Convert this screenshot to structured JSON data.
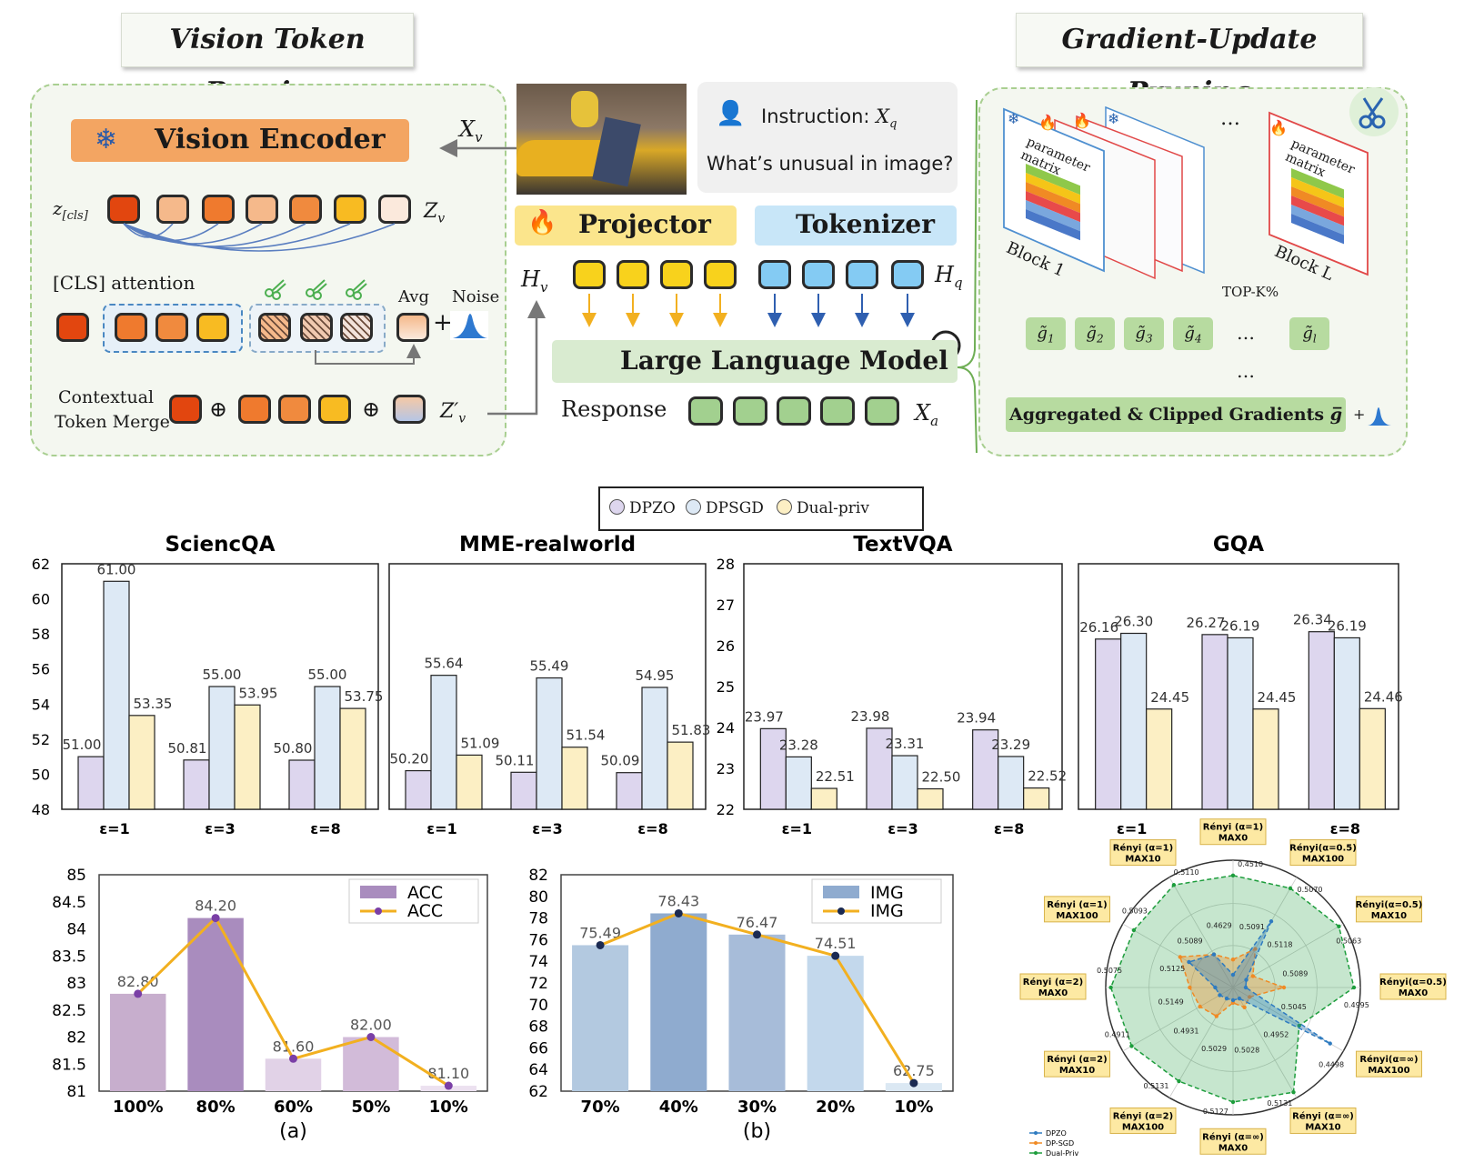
{
  "tags": {
    "vision": "Vision Token Pruning",
    "gradient": "Gradient-Update Pruning"
  },
  "vision_panel": {
    "encoder": "Vision Encoder",
    "x_v": "X",
    "x_v_sub": "v",
    "z_cls": "z",
    "z_cls_sub": "[cls]",
    "z_v": "Z",
    "z_v_sub": "v",
    "cls_attention": "[CLS]  attention",
    "avg": "Avg",
    "noise": "Noise",
    "plus": "+",
    "merge_label_1": "Contextual",
    "merge_label_2": "Token Merge",
    "oplus": "⊕",
    "z_v_prime": "Z′",
    "z_v_prime_sub": "v",
    "token_colors": [
      "#e2460f",
      "#f5b98b",
      "#ef7a2e",
      "#f5b98b",
      "#f08a3e",
      "#f8bb22",
      "#fbe9dc"
    ]
  },
  "center": {
    "instruction": "Instruction:",
    "x_q": "X",
    "x_q_sub": "q",
    "question": "What’s unusual in image?",
    "projector": "Projector",
    "tokenizer": "Tokenizer",
    "h_v": "H",
    "h_v_sub": "v",
    "h_q": "H",
    "h_q_sub": "q",
    "llm": "Large Language Model",
    "response": "Response",
    "x_a": "X",
    "x_a_sub": "a"
  },
  "gradient_panel": {
    "param_matrix": "parameter matrix",
    "block1": "Block 1",
    "blockL": "Block L",
    "ellipsis": "…",
    "topk": "TOP-K%",
    "grads": [
      [
        "g̃",
        "1"
      ],
      [
        "g̃",
        "2"
      ],
      [
        "g̃",
        "3"
      ],
      [
        "g̃",
        "4"
      ],
      [
        "g̃",
        "l"
      ]
    ],
    "aggregated": "Aggregated & Clipped Gradients ",
    "gbar": "g̅",
    "plus": "+"
  },
  "legend": {
    "items": [
      "DPZO",
      "DPSGD",
      "Dual-priv"
    ],
    "colors": [
      "#ddd6ee",
      "#dde9f5",
      "#fcefc4"
    ]
  },
  "chart_data": [
    {
      "type": "bar",
      "title": "SciencQA",
      "categories": [
        "ε=1",
        "ε=3",
        "ε=8"
      ],
      "ylim": [
        48,
        62
      ],
      "yticks": [
        "48",
        "50",
        "52",
        "54",
        "56",
        "58",
        "60",
        "62"
      ],
      "series": [
        {
          "name": "DPZO",
          "values": [
            51.0,
            50.81,
            50.8
          ]
        },
        {
          "name": "DPSGD",
          "values": [
            61.0,
            55.0,
            55.0
          ]
        },
        {
          "name": "Dual-priv",
          "values": [
            53.35,
            53.95,
            53.75
          ]
        }
      ],
      "labels": [
        [
          "51.00",
          "61.00",
          "53.35"
        ],
        [
          "50.81",
          "55.00",
          "53.95"
        ],
        [
          "50.80",
          "55.00",
          "53.75"
        ]
      ]
    },
    {
      "type": "bar",
      "title": "MME-realworld",
      "categories": [
        "ε=1",
        "ε=3",
        "ε=8"
      ],
      "ylim": [
        48,
        62
      ],
      "series": [
        {
          "name": "DPZO",
          "values": [
            50.2,
            50.11,
            50.09
          ]
        },
        {
          "name": "DPSGD",
          "values": [
            55.64,
            55.49,
            54.95
          ]
        },
        {
          "name": "Dual-priv",
          "values": [
            51.09,
            51.54,
            51.83
          ]
        }
      ],
      "labels": [
        [
          "50.20",
          "55.64",
          "51.09"
        ],
        [
          "50.11",
          "55.49",
          "51.54"
        ],
        [
          "50.09",
          "54.95",
          "51.83"
        ]
      ]
    },
    {
      "type": "bar",
      "title": "TextVQA",
      "categories": [
        "ε=1",
        "ε=3",
        "ε=8"
      ],
      "ylim": [
        22,
        28
      ],
      "yticks": [
        "22",
        "23",
        "24",
        "25",
        "26",
        "27",
        "28"
      ],
      "series": [
        {
          "name": "DPZO",
          "values": [
            23.97,
            23.98,
            23.94
          ]
        },
        {
          "name": "DPSGD",
          "values": [
            23.28,
            23.31,
            23.29
          ]
        },
        {
          "name": "Dual-priv",
          "values": [
            22.51,
            22.5,
            22.52
          ]
        }
      ],
      "labels": [
        [
          "23.97",
          "23.28",
          "22.51"
        ],
        [
          "23.98",
          "23.31",
          "22.50"
        ],
        [
          "23.94",
          "23.29",
          "22.52"
        ]
      ]
    },
    {
      "type": "bar",
      "title": "GQA",
      "categories": [
        "ε=1",
        "ε=3",
        "ε=8"
      ],
      "ylim": [
        22,
        28
      ],
      "series": [
        {
          "name": "DPZO",
          "values": [
            26.16,
            26.27,
            26.34
          ]
        },
        {
          "name": "DPSGD",
          "values": [
            26.3,
            26.19,
            26.19
          ]
        },
        {
          "name": "Dual-priv",
          "values": [
            24.45,
            24.45,
            24.46
          ]
        }
      ],
      "labels": [
        [
          "26.16",
          "26.30",
          "24.45"
        ],
        [
          "26.27",
          "26.19",
          "24.45"
        ],
        [
          "26.34",
          "26.19",
          "24.46"
        ]
      ]
    },
    {
      "type": "bar",
      "subtitle": "(a)",
      "categories": [
        "100%",
        "80%",
        "60%",
        "50%",
        "10%"
      ],
      "ylim": [
        81,
        85
      ],
      "yticks": [
        "81",
        "81.5",
        "82",
        "82.5",
        "83",
        "83.5",
        "84",
        "84.5",
        "85"
      ],
      "series": [
        {
          "name": "ACC",
          "values": [
            82.8,
            84.2,
            81.6,
            82.0,
            81.1
          ]
        }
      ],
      "labels": [
        "82.80",
        "84.20",
        "81.60",
        "82.00",
        "81.10"
      ],
      "legend": [
        "ACC",
        "ACC"
      ],
      "bar_colors": [
        "#c7aecd",
        "#a98cbe",
        "#e1d2e7",
        "#d2bbd9",
        "#ece1f0"
      ]
    },
    {
      "type": "bar",
      "subtitle": "(b)",
      "categories": [
        "70%",
        "40%",
        "30%",
        "20%",
        "10%"
      ],
      "ylim": [
        62,
        82
      ],
      "yticks": [
        "62",
        "64",
        "66",
        "68",
        "70",
        "72",
        "74",
        "76",
        "78",
        "80",
        "82"
      ],
      "series": [
        {
          "name": "IMG",
          "values": [
            75.49,
            78.43,
            76.47,
            74.51,
            62.75
          ]
        }
      ],
      "labels": [
        "75.49",
        "78.43",
        "76.47",
        "74.51",
        "62.75"
      ],
      "legend": [
        "IMG",
        "IMG"
      ],
      "bar_colors": [
        "#b3c9e0",
        "#8fabcf",
        "#a7bcd9",
        "#c3d8ec",
        "#dbe8f3"
      ]
    },
    {
      "type": "radar",
      "axes": [
        "Rényi (α=1)\nMAX0",
        "Rényi(α=0.5)\nMAX100",
        "Rényi(α=0.5)\nMAX10",
        "Rényi(α=0.5)\nMAX0",
        "Rényi(α=∞)\nMAX100",
        "Rényi (α=∞)\nMAX10",
        "Rényi (α=∞)\nMAX0",
        "Rényi (α=2)\nMAX100",
        "Rényi (α=2)\nMAX10",
        "Rényi (α=2)\nMAX0",
        "Rényi (α=1)\nMAX100",
        "Rényi (α=1)\nMAX10"
      ],
      "series": [
        {
          "name": "DPZO",
          "values": [
            0.1,
            0.6,
            0.12,
            0.1,
            0.88,
            0.1,
            0.1,
            0.1,
            0.12,
            0.14,
            0.4,
            0.3
          ],
          "color": "#2e7bc0"
        },
        {
          "name": "DP-SGD",
          "values": [
            0.22,
            0.35,
            0.18,
            0.4,
            0.15,
            0.18,
            0.12,
            0.26,
            0.3,
            0.34,
            0.48,
            0.3
          ],
          "color": "#f08a24"
        },
        {
          "name": "Dual-Priv",
          "values": [
            0.88,
            0.9,
            0.96,
            0.95,
            0.6,
            0.95,
            0.9,
            0.85,
            0.92,
            0.96,
            0.9,
            0.93
          ],
          "color": "#1d9d3c"
        }
      ],
      "point_labels": [
        "0.4510",
        "0.5070",
        "0.5063",
        "0.4995",
        "0.4498",
        "0.5131",
        "0.5127",
        "0.5131",
        "0.4911",
        "0.5075",
        "0.5093",
        "0.5110",
        "0.4629",
        "0.5091",
        "0.5118",
        "0.5089",
        "0.5045",
        "0.4952",
        "0.5028",
        "0.5029",
        "0.4931",
        "0.5149",
        "0.5125",
        "0.5089"
      ],
      "legend": [
        "DPZO",
        "DP-SGD",
        "Dual-Priv"
      ]
    }
  ]
}
